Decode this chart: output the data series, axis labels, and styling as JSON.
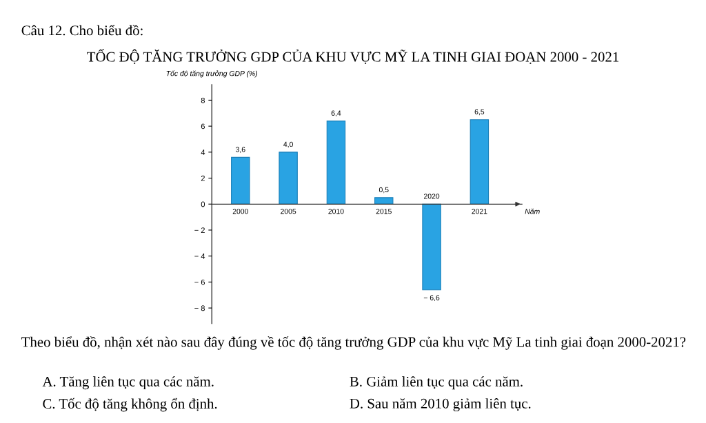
{
  "chart_data": {
    "type": "bar",
    "title": "TỐC ĐỘ TĂNG TRƯỞNG GDP CỦA KHU VỰC MỸ LA TINH GIAI ĐOẠN 2000 - 2021",
    "ylabel": "Tốc độ tăng trưởng GDP (%)",
    "xlabel": "Năm",
    "categories": [
      "2000",
      "2005",
      "2010",
      "2015",
      "2020",
      "2021"
    ],
    "values": [
      3.6,
      4.0,
      6.4,
      0.5,
      -6.6,
      6.5
    ],
    "value_labels": [
      "3,6",
      "4,0",
      "6,4",
      "0,5",
      "− 6,6",
      "6,5"
    ],
    "color": "#29a3e3",
    "ylim": [
      -9.2,
      9.2
    ],
    "yticks": [
      {
        "value": -8,
        "label": "− 8"
      },
      {
        "value": -6,
        "label": "− 6"
      },
      {
        "value": -4,
        "label": "− 4"
      },
      {
        "value": -2,
        "label": "− 2"
      },
      0,
      2,
      4,
      6,
      8
    ],
    "grid": false,
    "annotations": [
      "Câu 12. Cho biểu đồ:",
      "Theo biểu đồ, nhận xét nào sau đây đúng về tốc độ tăng trưởng GDP của khu vực Mỹ La tinh giai đoạn 2000-2021?",
      "A. Tăng liên tục qua các năm.",
      "B. Giảm liên tục qua các năm.",
      "C. Tốc độ tăng không ổn định.",
      "D. Sau năm 2010 giảm liên tục."
    ]
  }
}
